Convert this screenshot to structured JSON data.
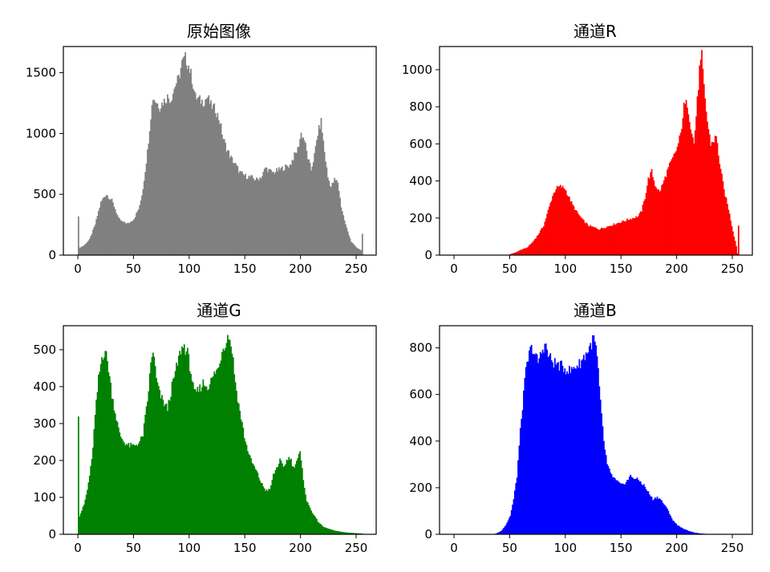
{
  "chart_data": [
    {
      "type": "bar",
      "title": "原始图像",
      "color": "#808080",
      "xticks": [
        0,
        50,
        100,
        150,
        200,
        250
      ],
      "yticks": [
        0,
        500,
        1000,
        1500
      ],
      "xlim": [
        -13,
        268
      ],
      "ylim": [
        0,
        1715
      ],
      "anchors": [
        [
          0,
          330
        ],
        [
          1,
          60
        ],
        [
          5,
          80
        ],
        [
          10,
          130
        ],
        [
          15,
          250
        ],
        [
          18,
          360
        ],
        [
          20,
          430
        ],
        [
          23,
          480
        ],
        [
          25,
          500
        ],
        [
          28,
          470
        ],
        [
          30,
          450
        ],
        [
          33,
          380
        ],
        [
          36,
          300
        ],
        [
          40,
          270
        ],
        [
          45,
          260
        ],
        [
          50,
          300
        ],
        [
          55,
          400
        ],
        [
          58,
          550
        ],
        [
          62,
          850
        ],
        [
          65,
          1150
        ],
        [
          67,
          1300
        ],
        [
          70,
          1260
        ],
        [
          73,
          1220
        ],
        [
          76,
          1260
        ],
        [
          80,
          1300
        ],
        [
          83,
          1280
        ],
        [
          87,
          1400
        ],
        [
          90,
          1450
        ],
        [
          93,
          1580
        ],
        [
          96,
          1620
        ],
        [
          99,
          1560
        ],
        [
          102,
          1450
        ],
        [
          105,
          1300
        ],
        [
          108,
          1280
        ],
        [
          112,
          1260
        ],
        [
          116,
          1300
        ],
        [
          119,
          1230
        ],
        [
          123,
          1200
        ],
        [
          127,
          1100
        ],
        [
          130,
          960
        ],
        [
          133,
          880
        ],
        [
          137,
          800
        ],
        [
          140,
          760
        ],
        [
          145,
          680
        ],
        [
          150,
          650
        ],
        [
          155,
          640
        ],
        [
          160,
          620
        ],
        [
          165,
          650
        ],
        [
          168,
          720
        ],
        [
          172,
          690
        ],
        [
          175,
          680
        ],
        [
          180,
          700
        ],
        [
          185,
          720
        ],
        [
          190,
          740
        ],
        [
          193,
          800
        ],
        [
          197,
          870
        ],
        [
          200,
          1000
        ],
        [
          203,
          950
        ],
        [
          206,
          800
        ],
        [
          209,
          700
        ],
        [
          212,
          820
        ],
        [
          215,
          1000
        ],
        [
          218,
          1100
        ],
        [
          221,
          850
        ],
        [
          224,
          640
        ],
        [
          227,
          560
        ],
        [
          230,
          620
        ],
        [
          233,
          600
        ],
        [
          236,
          400
        ],
        [
          240,
          250
        ],
        [
          245,
          110
        ],
        [
          250,
          60
        ],
        [
          254,
          40
        ],
        [
          255,
          170
        ]
      ]
    },
    {
      "type": "bar",
      "title": "通道R",
      "color": "#ff0000",
      "xticks": [
        0,
        50,
        100,
        150,
        200,
        250
      ],
      "yticks": [
        0,
        200,
        400,
        600,
        800,
        1000
      ],
      "xlim": [
        -13,
        268
      ],
      "ylim": [
        0,
        1125
      ],
      "anchors": [
        [
          0,
          0
        ],
        [
          48,
          0
        ],
        [
          50,
          5
        ],
        [
          55,
          15
        ],
        [
          60,
          30
        ],
        [
          65,
          40
        ],
        [
          70,
          70
        ],
        [
          75,
          110
        ],
        [
          80,
          160
        ],
        [
          85,
          260
        ],
        [
          88,
          320
        ],
        [
          91,
          360
        ],
        [
          95,
          370
        ],
        [
          99,
          360
        ],
        [
          102,
          320
        ],
        [
          106,
          270
        ],
        [
          110,
          230
        ],
        [
          115,
          190
        ],
        [
          120,
          160
        ],
        [
          125,
          150
        ],
        [
          130,
          140
        ],
        [
          135,
          150
        ],
        [
          140,
          160
        ],
        [
          145,
          170
        ],
        [
          150,
          180
        ],
        [
          155,
          190
        ],
        [
          160,
          200
        ],
        [
          165,
          210
        ],
        [
          168,
          240
        ],
        [
          171,
          310
        ],
        [
          174,
          410
        ],
        [
          177,
          450
        ],
        [
          180,
          380
        ],
        [
          184,
          340
        ],
        [
          188,
          400
        ],
        [
          192,
          470
        ],
        [
          196,
          520
        ],
        [
          200,
          580
        ],
        [
          203,
          650
        ],
        [
          206,
          800
        ],
        [
          209,
          820
        ],
        [
          212,
          700
        ],
        [
          215,
          600
        ],
        [
          218,
          830
        ],
        [
          220,
          1000
        ],
        [
          222,
          1070
        ],
        [
          224,
          900
        ],
        [
          227,
          720
        ],
        [
          230,
          600
        ],
        [
          233,
          620
        ],
        [
          235,
          640
        ],
        [
          238,
          500
        ],
        [
          242,
          350
        ],
        [
          246,
          250
        ],
        [
          250,
          130
        ],
        [
          253,
          50
        ],
        [
          254,
          10
        ],
        [
          255,
          160
        ]
      ]
    },
    {
      "type": "bar",
      "title": "通道G",
      "color": "#008000",
      "xticks": [
        0,
        50,
        100,
        150,
        200,
        250
      ],
      "yticks": [
        0,
        100,
        200,
        300,
        400,
        500
      ],
      "xlim": [
        -13,
        268
      ],
      "ylim": [
        0,
        565
      ],
      "anchors": [
        [
          0,
          330
        ],
        [
          1,
          50
        ],
        [
          5,
          80
        ],
        [
          8,
          120
        ],
        [
          12,
          200
        ],
        [
          15,
          320
        ],
        [
          18,
          420
        ],
        [
          21,
          480
        ],
        [
          24,
          500
        ],
        [
          27,
          450
        ],
        [
          30,
          380
        ],
        [
          33,
          330
        ],
        [
          37,
          270
        ],
        [
          41,
          250
        ],
        [
          45,
          240
        ],
        [
          50,
          240
        ],
        [
          55,
          250
        ],
        [
          58,
          270
        ],
        [
          62,
          360
        ],
        [
          65,
          460
        ],
        [
          67,
          500
        ],
        [
          70,
          420
        ],
        [
          73,
          380
        ],
        [
          76,
          360
        ],
        [
          80,
          340
        ],
        [
          84,
          400
        ],
        [
          88,
          450
        ],
        [
          92,
          500
        ],
        [
          95,
          510
        ],
        [
          98,
          490
        ],
        [
          101,
          440
        ],
        [
          104,
          380
        ],
        [
          108,
          390
        ],
        [
          112,
          410
        ],
        [
          116,
          400
        ],
        [
          120,
          420
        ],
        [
          123,
          440
        ],
        [
          126,
          450
        ],
        [
          129,
          500
        ],
        [
          132,
          520
        ],
        [
          135,
          540
        ],
        [
          138,
          500
        ],
        [
          141,
          410
        ],
        [
          144,
          350
        ],
        [
          147,
          300
        ],
        [
          150,
          250
        ],
        [
          155,
          200
        ],
        [
          160,
          170
        ],
        [
          164,
          140
        ],
        [
          168,
          120
        ],
        [
          172,
          120
        ],
        [
          175,
          160
        ],
        [
          178,
          180
        ],
        [
          181,
          200
        ],
        [
          184,
          180
        ],
        [
          187,
          200
        ],
        [
          190,
          210
        ],
        [
          193,
          180
        ],
        [
          196,
          200
        ],
        [
          199,
          220
        ],
        [
          202,
          150
        ],
        [
          205,
          90
        ],
        [
          210,
          60
        ],
        [
          215,
          35
        ],
        [
          220,
          20
        ],
        [
          230,
          10
        ],
        [
          240,
          5
        ],
        [
          250,
          3
        ],
        [
          255,
          2
        ]
      ]
    },
    {
      "type": "bar",
      "title": "通道B",
      "color": "#0000ff",
      "xticks": [
        0,
        50,
        100,
        150,
        200,
        250
      ],
      "yticks": [
        0,
        200,
        400,
        600,
        800
      ],
      "xlim": [
        -13,
        268
      ],
      "ylim": [
        0,
        895
      ],
      "anchors": [
        [
          0,
          0
        ],
        [
          35,
          0
        ],
        [
          38,
          5
        ],
        [
          42,
          15
        ],
        [
          46,
          40
        ],
        [
          50,
          80
        ],
        [
          53,
          150
        ],
        [
          56,
          250
        ],
        [
          58,
          380
        ],
        [
          60,
          500
        ],
        [
          62,
          600
        ],
        [
          64,
          700
        ],
        [
          66,
          750
        ],
        [
          68,
          790
        ],
        [
          70,
          800
        ],
        [
          72,
          770
        ],
        [
          75,
          740
        ],
        [
          78,
          780
        ],
        [
          81,
          820
        ],
        [
          84,
          770
        ],
        [
          88,
          740
        ],
        [
          92,
          730
        ],
        [
          96,
          720
        ],
        [
          100,
          710
        ],
        [
          104,
          700
        ],
        [
          108,
          720
        ],
        [
          112,
          730
        ],
        [
          116,
          760
        ],
        [
          120,
          790
        ],
        [
          123,
          820
        ],
        [
          125,
          840
        ],
        [
          127,
          800
        ],
        [
          129,
          700
        ],
        [
          131,
          560
        ],
        [
          134,
          400
        ],
        [
          137,
          300
        ],
        [
          140,
          260
        ],
        [
          145,
          230
        ],
        [
          150,
          210
        ],
        [
          155,
          230
        ],
        [
          158,
          250
        ],
        [
          162,
          240
        ],
        [
          166,
          230
        ],
        [
          170,
          210
        ],
        [
          174,
          180
        ],
        [
          178,
          150
        ],
        [
          182,
          160
        ],
        [
          185,
          150
        ],
        [
          188,
          130
        ],
        [
          192,
          100
        ],
        [
          196,
          60
        ],
        [
          200,
          40
        ],
        [
          205,
          25
        ],
        [
          210,
          15
        ],
        [
          215,
          8
        ],
        [
          220,
          4
        ],
        [
          225,
          2
        ],
        [
          230,
          0
        ],
        [
          255,
          0
        ]
      ]
    }
  ]
}
